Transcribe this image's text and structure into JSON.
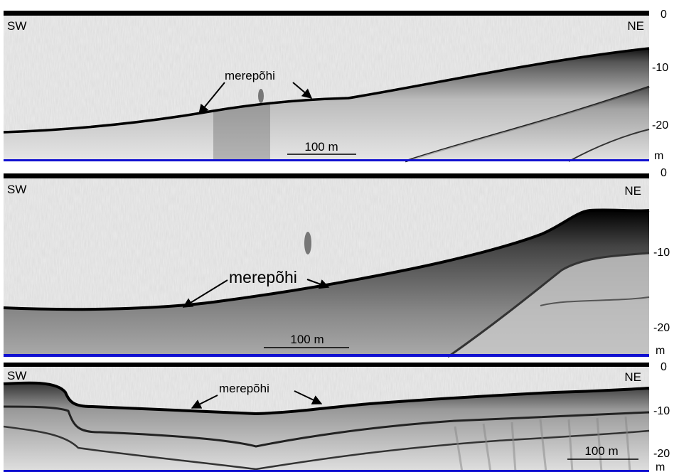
{
  "panels": [
    {
      "left_label": "SW",
      "right_label": "NE",
      "annotation": "merepõhi",
      "scale_bar": "100 m",
      "depth_ticks": [
        "0",
        "-10",
        "-20",
        "m"
      ]
    },
    {
      "left_label": "SW",
      "right_label": "NE",
      "annotation": "merepõhi",
      "scale_bar": "100 m",
      "depth_ticks": [
        "0",
        "-10",
        "-20",
        "m"
      ]
    },
    {
      "left_label": "SW",
      "right_label": "NE",
      "annotation": "merepõhi",
      "scale_bar": "100 m",
      "depth_ticks": [
        "0",
        "-10",
        "-20",
        "m"
      ]
    }
  ],
  "colors": {
    "baseline": "#1010d0",
    "seabed": "#000000",
    "water": "#eeeeee"
  }
}
